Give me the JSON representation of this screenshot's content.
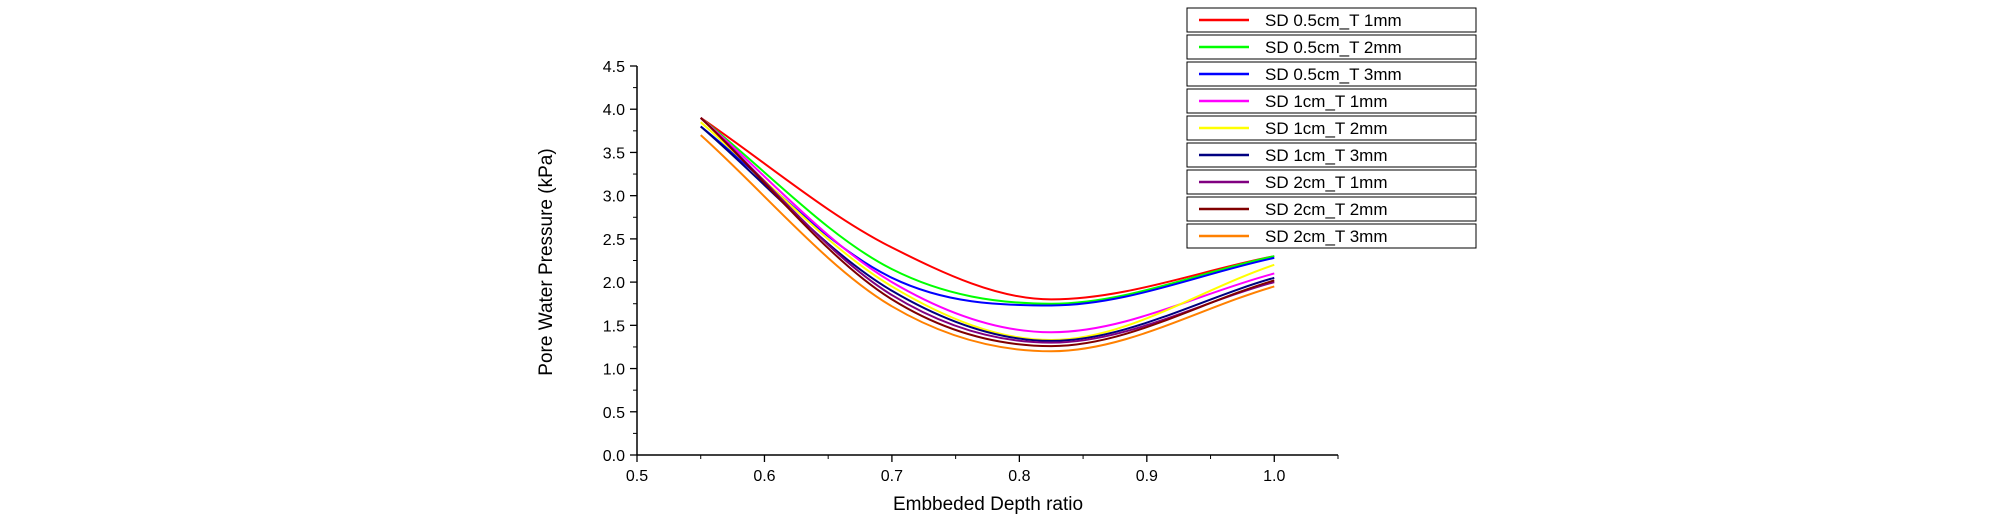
{
  "chart_data": {
    "type": "line",
    "title": "",
    "xlabel": "Embbeded Depth ratio",
    "ylabel": "Pore Water Pressure (kPa)",
    "xlim": [
      0.5,
      1.05
    ],
    "ylim": [
      0.0,
      4.5
    ],
    "xticks": [
      "0.5",
      "0.6",
      "0.7",
      "0.8",
      "0.9",
      "1.0"
    ],
    "yticks": [
      "0.0",
      "0.5",
      "1.0",
      "1.5",
      "2.0",
      "2.5",
      "3.0",
      "3.5",
      "4.0",
      "4.5"
    ],
    "grid": false,
    "legend_position": "top-right",
    "x": [
      0.55,
      0.7,
      0.825,
      1.0
    ],
    "series": [
      {
        "name": "SD 0.5cm_T 1mm",
        "color": "#ff0000",
        "values": [
          3.9,
          2.4,
          1.8,
          2.3
        ]
      },
      {
        "name": "SD 0.5cm_T 2mm",
        "color": "#00ff00",
        "values": [
          3.9,
          2.15,
          1.75,
          2.3
        ]
      },
      {
        "name": "SD 0.5cm_T 3mm",
        "color": "#0000ff",
        "values": [
          3.8,
          2.05,
          1.73,
          2.28
        ]
      },
      {
        "name": "SD 1cm_T 1mm",
        "color": "#ff00ff",
        "values": [
          3.9,
          2.0,
          1.42,
          2.1
        ]
      },
      {
        "name": "SD 1cm_T 2mm",
        "color": "#ffff00",
        "values": [
          3.85,
          1.95,
          1.33,
          2.2
        ]
      },
      {
        "name": "SD 1cm_T 3mm",
        "color": "#000080",
        "values": [
          3.8,
          1.9,
          1.32,
          2.05
        ]
      },
      {
        "name": "SD 2cm_T 1mm",
        "color": "#800080",
        "values": [
          3.9,
          1.85,
          1.3,
          2.0
        ]
      },
      {
        "name": "SD 2cm_T 2mm",
        "color": "#800000",
        "values": [
          3.9,
          1.8,
          1.26,
          2.02
        ]
      },
      {
        "name": "SD 2cm_T 3mm",
        "color": "#ff8000",
        "values": [
          3.7,
          1.72,
          1.2,
          1.95
        ]
      }
    ]
  }
}
